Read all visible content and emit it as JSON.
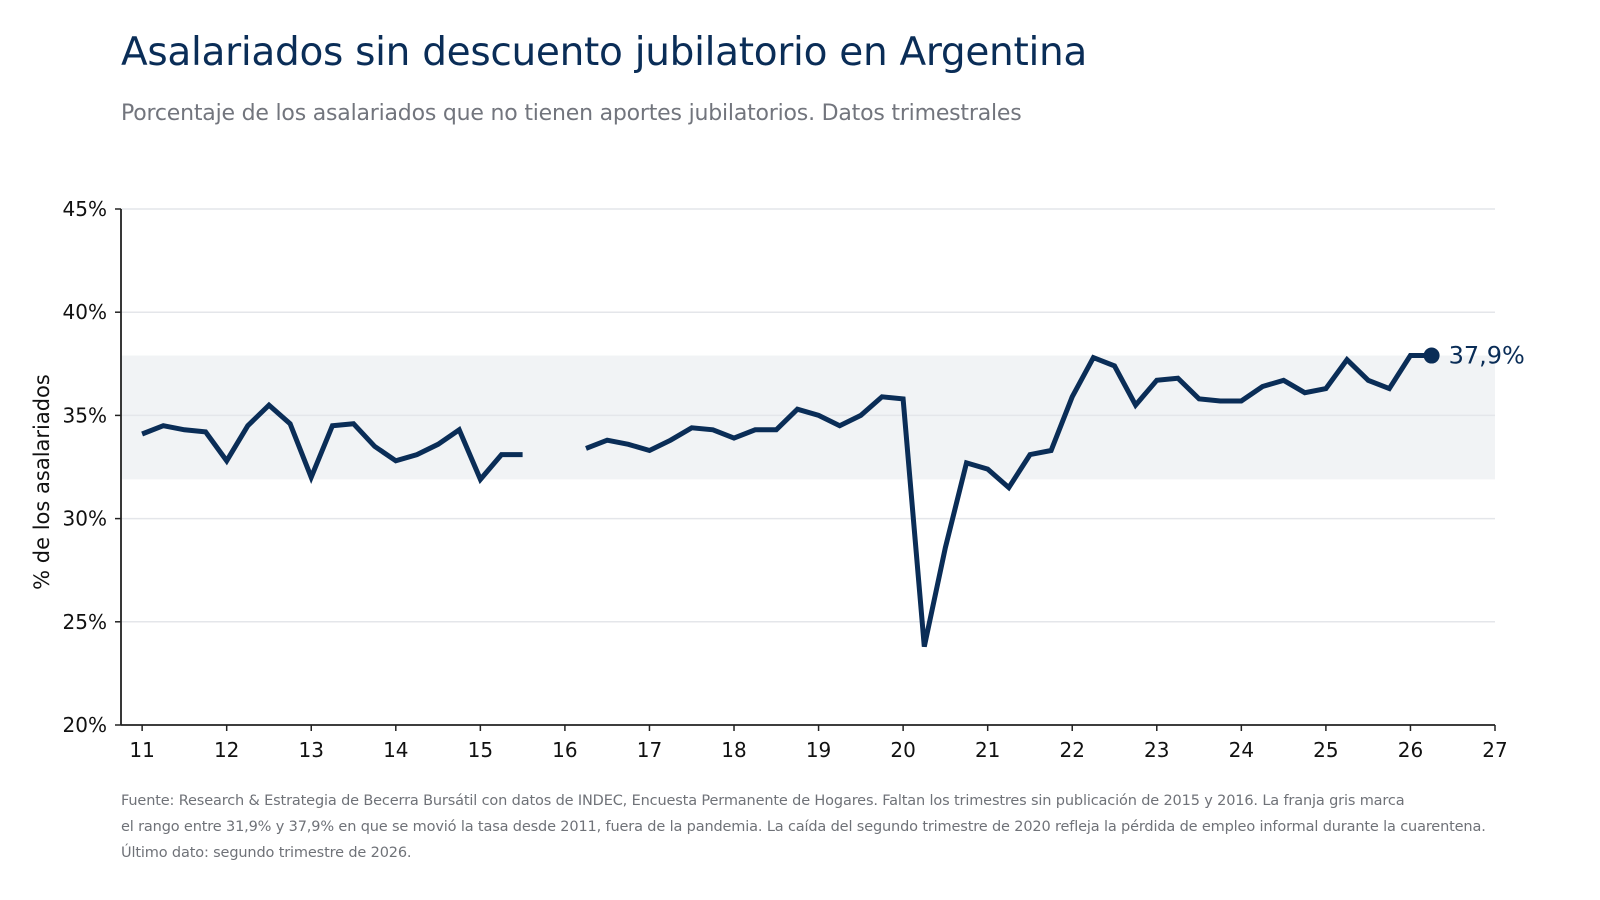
{
  "header": {
    "title": "Asalariados sin descuento jubilatorio en Argentina",
    "subtitle": "Porcentaje de los asalariados que no tienen aportes jubilatorios. Datos trimestrales"
  },
  "footnote": {
    "line1": "Fuente: Research & Estrategia de Becerra Bursátil con datos de INDEC, Encuesta Permanente de Hogares. Faltan los trimestres sin publicación de 2015 y 2016. La franja gris marca",
    "line2": "el rango entre 31,9% y 37,9% en que se movió la tasa desde 2011, fuera de la pandemia. La caída del segundo trimestre de 2020 refleja la pérdida de empleo informal durante la cuarentena.",
    "line3": "Último dato: segundo trimestre de 2026."
  },
  "colors": {
    "line": "#0a2d57",
    "band": "#f1f3f5",
    "grid": "#e4e6ea",
    "axis": "#222222"
  },
  "chart_data": {
    "type": "line",
    "ylabel": "% de los asalariados",
    "ylim": [
      20,
      45
    ],
    "yticks": [
      20,
      25,
      30,
      35,
      40,
      45
    ],
    "ytick_labels": [
      "20%",
      "25%",
      "30%",
      "35%",
      "40%",
      "45%"
    ],
    "xlim": [
      2010.75,
      2027
    ],
    "xticks": [
      2011,
      2012,
      2013,
      2014,
      2015,
      2016,
      2017,
      2018,
      2019,
      2020,
      2021,
      2022,
      2023,
      2024,
      2025,
      2026,
      2027
    ],
    "xtick_labels": [
      "11",
      "12",
      "13",
      "14",
      "15",
      "16",
      "17",
      "18",
      "19",
      "20",
      "21",
      "22",
      "23",
      "24",
      "25",
      "26",
      "27"
    ],
    "band": [
      31.9,
      37.9
    ],
    "last_label": "37,9%",
    "series": [
      {
        "segments": [
          [
            [
              2011.0,
              34.1
            ],
            [
              2011.25,
              34.5
            ],
            [
              2011.5,
              34.3
            ],
            [
              2011.75,
              34.2
            ],
            [
              2012.0,
              32.8
            ],
            [
              2012.25,
              34.5
            ],
            [
              2012.5,
              35.5
            ],
            [
              2012.75,
              34.6
            ],
            [
              2013.0,
              32.0
            ],
            [
              2013.25,
              34.5
            ],
            [
              2013.5,
              34.6
            ],
            [
              2013.75,
              33.5
            ],
            [
              2014.0,
              32.8
            ],
            [
              2014.25,
              33.1
            ],
            [
              2014.5,
              33.6
            ],
            [
              2014.75,
              34.3
            ],
            [
              2015.0,
              31.9
            ],
            [
              2015.25,
              33.1
            ],
            [
              2015.5,
              33.1
            ]
          ],
          [
            [
              2016.25,
              33.4
            ],
            [
              2016.5,
              33.8
            ],
            [
              2016.75,
              33.6
            ],
            [
              2017.0,
              33.3
            ],
            [
              2017.25,
              33.8
            ],
            [
              2017.5,
              34.4
            ],
            [
              2017.75,
              34.3
            ],
            [
              2018.0,
              33.9
            ],
            [
              2018.25,
              34.3
            ],
            [
              2018.5,
              34.3
            ],
            [
              2018.75,
              35.3
            ],
            [
              2019.0,
              35.0
            ],
            [
              2019.25,
              34.5
            ],
            [
              2019.5,
              35.0
            ],
            [
              2019.75,
              35.9
            ],
            [
              2020.0,
              35.8
            ],
            [
              2020.25,
              23.8
            ],
            [
              2020.5,
              28.6
            ],
            [
              2020.75,
              32.7
            ],
            [
              2021.0,
              32.4
            ],
            [
              2021.25,
              31.5
            ],
            [
              2021.5,
              33.1
            ],
            [
              2021.75,
              33.3
            ],
            [
              2022.0,
              35.9
            ],
            [
              2022.25,
              37.8
            ],
            [
              2022.5,
              37.4
            ],
            [
              2022.75,
              35.5
            ],
            [
              2023.0,
              36.7
            ],
            [
              2023.25,
              36.8
            ],
            [
              2023.5,
              35.8
            ],
            [
              2023.75,
              35.7
            ],
            [
              2024.0,
              35.7
            ],
            [
              2024.25,
              36.4
            ],
            [
              2024.5,
              36.7
            ],
            [
              2024.75,
              36.1
            ],
            [
              2025.0,
              36.3
            ],
            [
              2025.25,
              37.7
            ],
            [
              2025.5,
              36.7
            ],
            [
              2025.75,
              36.3
            ],
            [
              2026.0,
              37.9
            ],
            [
              2026.25,
              37.9
            ]
          ]
        ]
      }
    ]
  }
}
